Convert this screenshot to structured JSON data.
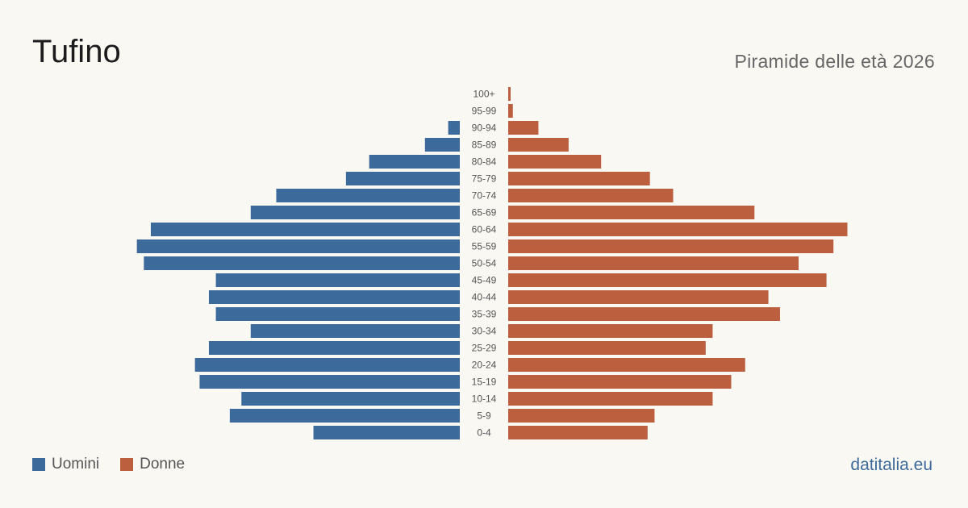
{
  "header": {
    "title": "Tufino",
    "subtitle": "Piramide delle età 2026"
  },
  "legend": {
    "men_label": "Uomini",
    "women_label": "Donne"
  },
  "source": {
    "label": "datitalia.eu"
  },
  "colors": {
    "men": "#3b6a9b",
    "women": "#bb5f3e"
  },
  "chart_data": {
    "type": "bar",
    "orientation": "horizontal-pyramid",
    "title": "Piramide delle età 2026",
    "categories": [
      "100+",
      "95-99",
      "90-94",
      "85-89",
      "80-84",
      "75-79",
      "70-74",
      "65-69",
      "60-64",
      "55-59",
      "50-54",
      "45-49",
      "40-44",
      "35-39",
      "30-34",
      "25-29",
      "20-24",
      "15-19",
      "10-14",
      "5-9",
      "0-4"
    ],
    "series": [
      {
        "name": "Uomini",
        "values": [
          0,
          0,
          5,
          15,
          39,
          49,
          79,
          90,
          133,
          139,
          136,
          105,
          108,
          105,
          90,
          108,
          114,
          112,
          94,
          99,
          63
        ]
      },
      {
        "name": "Donne",
        "values": [
          1,
          2,
          13,
          26,
          40,
          61,
          71,
          106,
          146,
          140,
          125,
          137,
          112,
          117,
          88,
          85,
          102,
          96,
          88,
          63,
          60
        ]
      }
    ],
    "xlim": [
      0,
      150
    ],
    "grid": false,
    "legend_position": "bottom-left"
  }
}
